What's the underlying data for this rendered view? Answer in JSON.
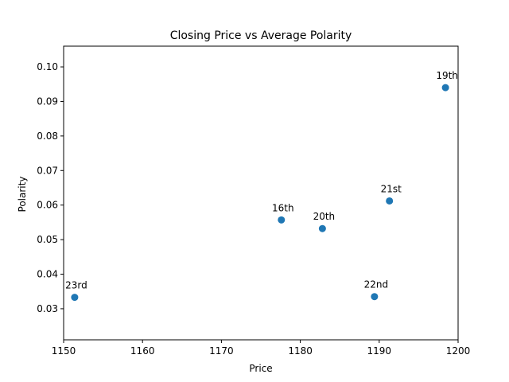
{
  "chart_data": {
    "type": "scatter",
    "title": "Closing Price vs Average Polarity",
    "xlabel": "Price",
    "ylabel": "Polarity",
    "xlim": [
      1150,
      1200
    ],
    "ylim": [
      0.021,
      0.106
    ],
    "xticks": [
      1150,
      1160,
      1170,
      1180,
      1190,
      1200
    ],
    "yticks": [
      0.03,
      0.04,
      0.05,
      0.06,
      0.07,
      0.08,
      0.09,
      0.1
    ],
    "grid": false,
    "legend": "none",
    "point_color": "#1f77b4",
    "points": [
      {
        "label": "16th",
        "x": 1177.6,
        "y": 0.0557
      },
      {
        "label": "19th",
        "x": 1198.4,
        "y": 0.094
      },
      {
        "label": "20th",
        "x": 1182.8,
        "y": 0.0532
      },
      {
        "label": "21st",
        "x": 1191.3,
        "y": 0.0612
      },
      {
        "label": "22nd",
        "x": 1189.4,
        "y": 0.0335
      },
      {
        "label": "23rd",
        "x": 1151.4,
        "y": 0.0333
      }
    ]
  }
}
